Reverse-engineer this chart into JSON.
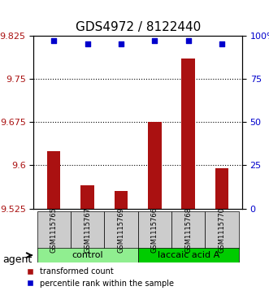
{
  "title": "GDS4972 / 8122440",
  "samples": [
    "GSM1115765",
    "GSM1115767",
    "GSM1115769",
    "GSM1115766",
    "GSM1115768",
    "GSM1115770"
  ],
  "bar_values": [
    9.625,
    9.565,
    9.555,
    9.675,
    9.785,
    9.595
  ],
  "percentile_values": [
    97,
    95,
    95,
    97,
    97,
    95
  ],
  "ylim_left": [
    9.525,
    9.825
  ],
  "ylim_right": [
    0,
    100
  ],
  "yticks_left": [
    9.525,
    9.6,
    9.675,
    9.75,
    9.825
  ],
  "yticks_right": [
    0,
    25,
    50,
    75,
    100
  ],
  "ytick_labels_left": [
    "9.525",
    "9.6",
    "9.675",
    "9.75",
    "9.825"
  ],
  "ytick_labels_right": [
    "0",
    "25",
    "50",
    "75",
    "100%"
  ],
  "hlines": [
    9.6,
    9.675,
    9.75
  ],
  "groups": [
    {
      "label": "control",
      "indices": [
        0,
        1,
        2
      ],
      "color": "#90EE90"
    },
    {
      "label": "laccaic acid A",
      "indices": [
        3,
        4,
        5
      ],
      "color": "#00CC00"
    }
  ],
  "bar_color": "#AA1111",
  "dot_color": "#0000CC",
  "bar_width": 0.4,
  "agent_label": "agent",
  "legend_bar_label": "transformed count",
  "legend_dot_label": "percentile rank within the sample",
  "title_fontsize": 11,
  "tick_fontsize": 8,
  "label_fontsize": 9
}
